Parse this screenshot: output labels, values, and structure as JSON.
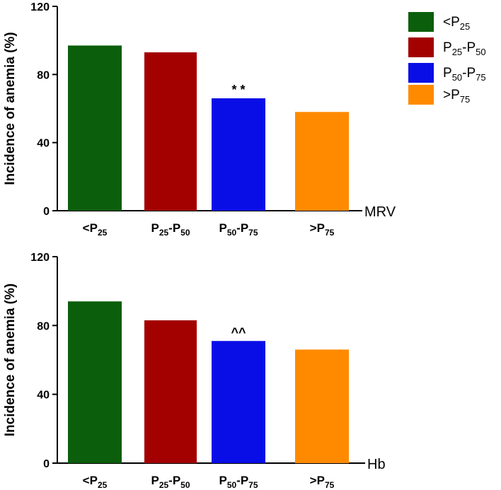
{
  "chart_data": [
    {
      "type": "bar",
      "x_axis_name": "MRV",
      "ylabel": "Incidence of anemia (%)",
      "ylim": [
        0,
        120
      ],
      "yticks": [
        "0",
        "40",
        "80",
        "120"
      ],
      "categories": [
        {
          "main": "<P",
          "sub1": "25",
          "mid": "",
          "sub2": ""
        },
        {
          "main": "P",
          "sub1": "25",
          "mid": "-P",
          "sub2": "50"
        },
        {
          "main": "P",
          "sub1": "50",
          "mid": "-P",
          "sub2": "75"
        },
        {
          "main": ">P",
          "sub1": "75",
          "mid": "",
          "sub2": ""
        }
      ],
      "values": [
        97,
        93,
        66,
        58
      ],
      "annotations": [
        {
          "category_index": 2,
          "text": "* *"
        }
      ],
      "grid": false
    },
    {
      "type": "bar",
      "x_axis_name": "Hb",
      "ylabel": "Incidence of anemia (%)",
      "ylim": [
        0,
        120
      ],
      "yticks": [
        "0",
        "40",
        "80",
        "120"
      ],
      "categories": [
        {
          "main": "<P",
          "sub1": "25",
          "mid": "",
          "sub2": ""
        },
        {
          "main": "P",
          "sub1": "25",
          "mid": "-P",
          "sub2": "50"
        },
        {
          "main": "P",
          "sub1": "50",
          "mid": "-P",
          "sub2": "75"
        },
        {
          "main": ">P",
          "sub1": "75",
          "mid": "",
          "sub2": ""
        }
      ],
      "values": [
        94,
        83,
        71,
        66
      ],
      "annotations": [
        {
          "category_index": 2,
          "text": "^^"
        }
      ],
      "grid": false
    }
  ],
  "legend": {
    "placement": "top-right",
    "entries": [
      {
        "main": "<P",
        "sub1": "25",
        "mid": "",
        "sub2": "",
        "color": "#0b5e0b"
      },
      {
        "main": "P",
        "sub1": "25",
        "mid": "-P",
        "sub2": "50",
        "color": "#a30000"
      },
      {
        "main": "P",
        "sub1": "50",
        "mid": "-P",
        "sub2": "75",
        "color": "#0a0ee6"
      },
      {
        "main": ">P",
        "sub1": "75",
        "mid": "",
        "sub2": "",
        "color": "#ff8a00"
      }
    ]
  },
  "colors": [
    "#0b5e0b",
    "#a30000",
    "#0a0ee6",
    "#ff8a00"
  ]
}
